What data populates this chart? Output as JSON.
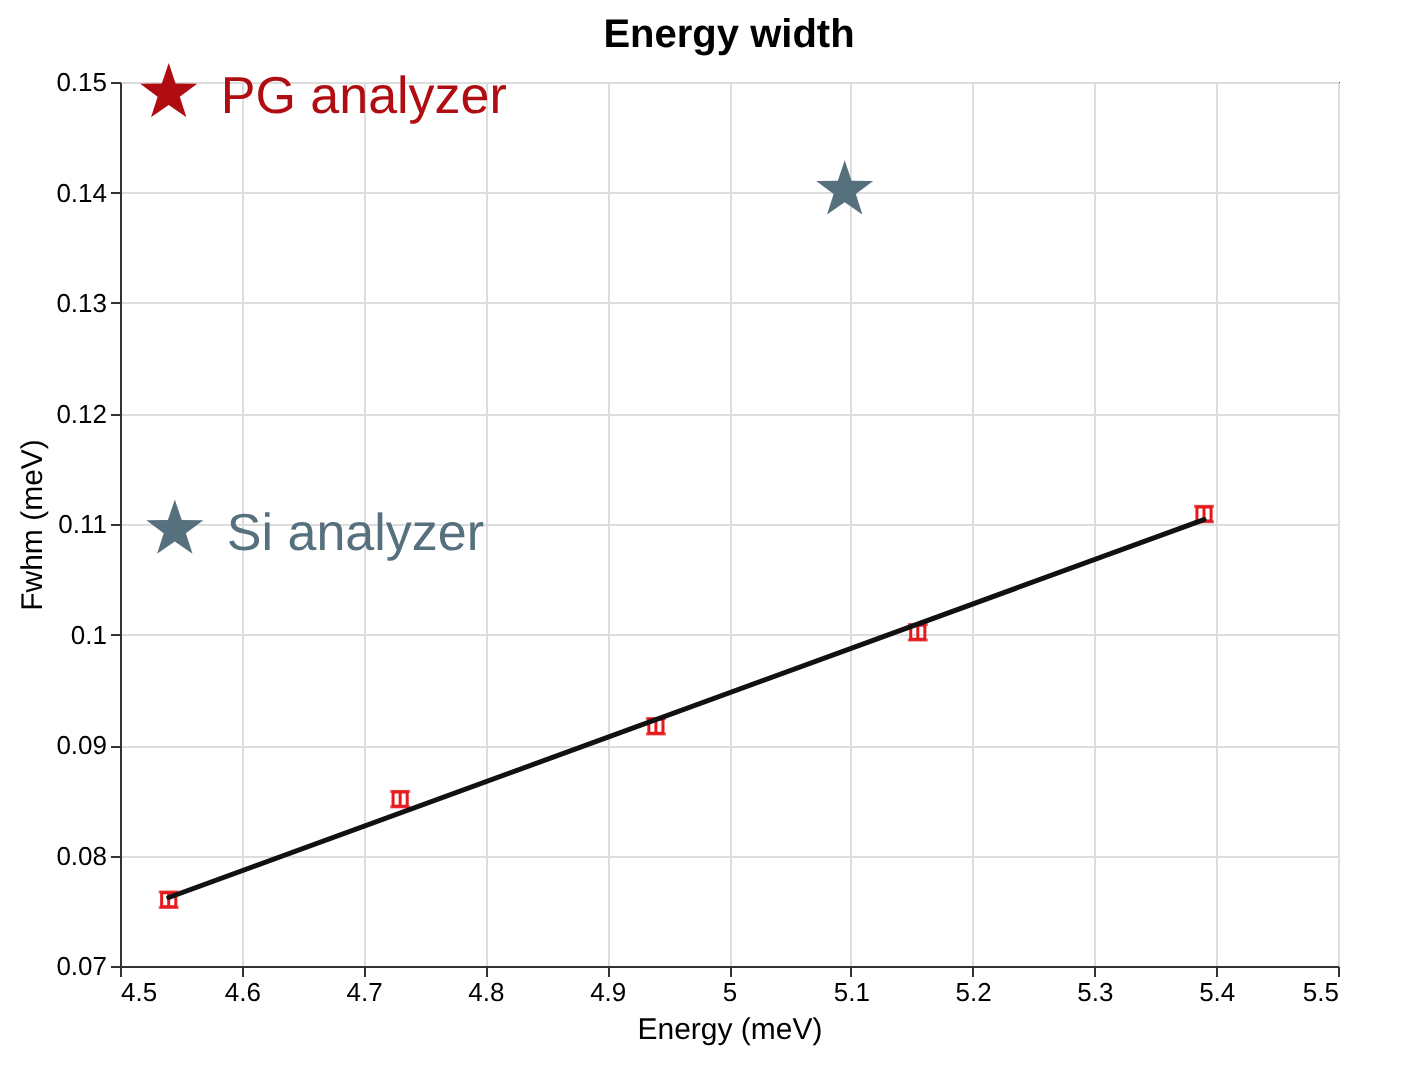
{
  "chart_data": {
    "type": "scatter",
    "title": "Energy width",
    "xlabel": "Energy (meV)",
    "ylabel": "Fwhm  (meV)",
    "xlim": [
      4.5,
      5.5
    ],
    "xticks": [
      4.5,
      4.6,
      4.7,
      4.8,
      4.9,
      5,
      5.1,
      5.2,
      5.3,
      5.4,
      5.5
    ],
    "ylim": [
      0.07,
      0.15
    ],
    "yticks": [
      0.07,
      0.08,
      0.09,
      0.1,
      0.11,
      0.12,
      0.13,
      0.14,
      0.15
    ],
    "grid": true,
    "series": [
      {
        "color": "#e41a1c",
        "marker": "square",
        "x": [
          4.54,
          4.73,
          4.94,
          5.155,
          5.39
        ],
        "values": [
          0.076,
          0.0851,
          0.0917,
          0.1002,
          0.1109
        ],
        "errors": [
          0.0007,
          0.0007,
          0.0007,
          0.0007,
          0.0007
        ]
      },
      {
        "type": "line",
        "color": "#111111",
        "x": [
          4.54,
          5.39
        ],
        "values": [
          0.0762,
          0.1104
        ]
      },
      {
        "type": "scatter",
        "name": "PG analyzer",
        "color": "#b00d12",
        "marker": "star",
        "x": [
          4.54
        ],
        "values": [
          0.149
        ]
      },
      {
        "type": "scatter",
        "name": "Si analyzer",
        "color": "#56707e",
        "marker": "star",
        "x": [
          4.545,
          5.095
        ],
        "values": [
          0.1095,
          0.1402
        ]
      }
    ]
  }
}
